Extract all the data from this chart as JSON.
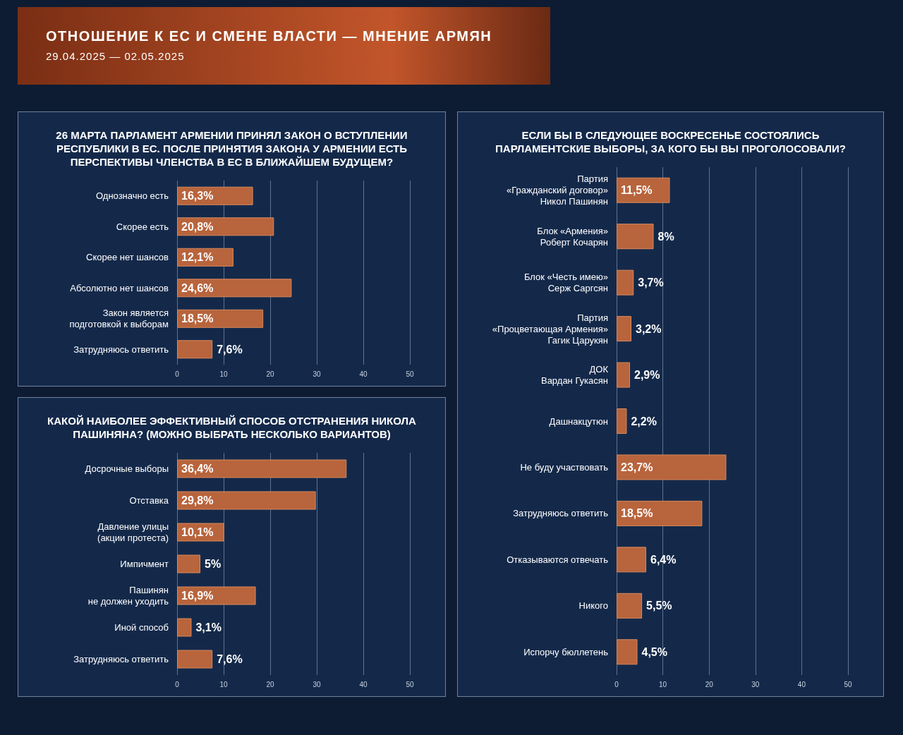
{
  "chart_data": [
    {
      "type": "other",
      "title": "ОТНОШЕНИЕ К ЕС И СМЕНЕ ВЛАСТИ — МНЕНИЕ АРМЯН",
      "subtitle": "29.04.2025 — 02.05.2025"
    },
    {
      "type": "bar",
      "orientation": "horizontal",
      "title": "26 МАРТА ПАРЛАМЕНТ АРМЕНИИ ПРИНЯЛ ЗАКОН О ВСТУПЛЕНИИ\nРЕСПУБЛИКИ В ЕС. ПОСЛЕ ПРИНЯТИЯ ЗАКОНА У АРМЕНИИ ЕСТЬ\nПЕРСПЕКТИВЫ ЧЛЕНСТВА В ЕС В БЛИЖАЙШЕМ БУДУЩЕМ?",
      "categories": [
        "Однозначно есть",
        "Скорее есть",
        "Скорее нет шансов",
        "Абсолютно нет шансов",
        "Закон является\nподготовкой к выборам",
        "Затрудняюсь ответить"
      ],
      "values": [
        16.3,
        20.8,
        12.1,
        24.6,
        18.5,
        7.6
      ],
      "value_labels": [
        "16,3%",
        "20,8%",
        "12,1%",
        "24,6%",
        "18,5%",
        "7,6%"
      ],
      "color": "#b8643c",
      "xlim": [
        0,
        50
      ],
      "xticks": [
        0,
        10,
        20,
        30,
        40,
        50
      ],
      "grid": "x"
    },
    {
      "type": "bar",
      "orientation": "horizontal",
      "title": "КАКОЙ НАИБОЛЕЕ ЭФФЕКТИВНЫЙ СПОСОБ ОТСТРАНЕНИЯ НИКОЛА\nПАШИНЯНА? (МОЖНО ВЫБРАТЬ НЕСКОЛЬКО ВАРИАНТОВ)",
      "categories": [
        "Досрочные выборы",
        "Отставка",
        "Давление улицы\n(акции протеста)",
        "Импичмент",
        "Пашинян\nне должен уходить",
        "Иной способ",
        "Затрудняюсь ответить"
      ],
      "values": [
        36.4,
        29.8,
        10.1,
        5,
        16.9,
        3.1,
        7.6
      ],
      "value_labels": [
        "36,4%",
        "29,8%",
        "10,1%",
        "5%",
        "16,9%",
        "3,1%",
        "7,6%"
      ],
      "color": "#b8643c",
      "xlim": [
        0,
        50
      ],
      "xticks": [
        0,
        10,
        20,
        30,
        40,
        50
      ],
      "grid": "x"
    },
    {
      "type": "bar",
      "orientation": "horizontal",
      "title": "ЕСЛИ БЫ В СЛЕДУЮЩЕЕ ВОСКРЕСЕНЬЕ СОСТОЯЛИСЬ\nПАРЛАМЕНТСКИЕ ВЫБОРЫ, ЗА КОГО БЫ ВЫ ПРОГОЛОСОВАЛИ?",
      "categories": [
        "Партия\n«Гражданский договор»\nНикол Пашинян",
        "Блок «Армения»\nРоберт Кочарян",
        "Блок «Честь имею»\nСерж Саргсян",
        "Партия\n«Процветающая Армения»\nГагик Царукян",
        "ДОК\nВардан Гукасян",
        "Дашнакцутюн",
        "Не буду участвовать",
        "Затрудняюсь ответить",
        "Отказываются отвечать",
        "Никого",
        "Испорчу бюллетень"
      ],
      "values": [
        11.5,
        8,
        3.7,
        3.2,
        2.9,
        2.2,
        23.7,
        18.5,
        6.4,
        5.5,
        4.5
      ],
      "value_labels": [
        "11,5%",
        "8%",
        "3,7%",
        "3,2%",
        "2,9%",
        "2,2%",
        "23,7%",
        "18,5%",
        "6,4%",
        "5,5%",
        "4,5%"
      ],
      "color": "#b8643c",
      "xlim": [
        0,
        50
      ],
      "xticks": [
        0,
        10,
        20,
        30,
        40,
        50
      ],
      "grid": "x"
    }
  ]
}
